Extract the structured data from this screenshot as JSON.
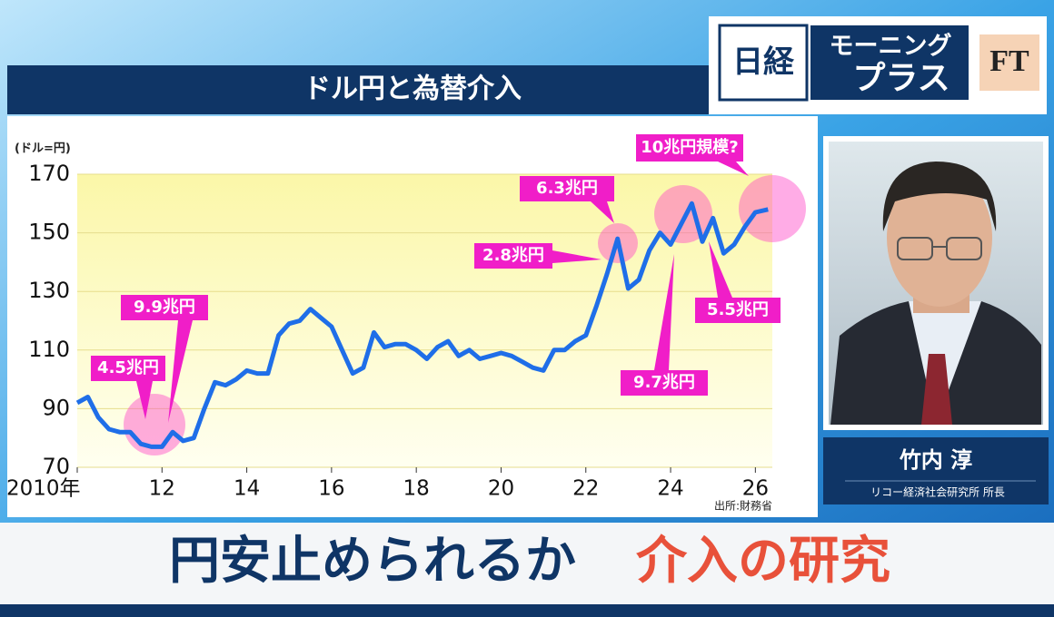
{
  "header": {
    "title": "ドル円と為替介入"
  },
  "logo": {
    "nikkei": "日経",
    "line1": "モーニング",
    "line2": "プラス",
    "ft": "FT"
  },
  "chart_data": {
    "type": "line",
    "unit_label": "(ドル=円)",
    "source": "出所:財務省",
    "color": "#1f6ee8",
    "x": [
      2010.0,
      2010.25,
      2010.5,
      2010.75,
      2011.0,
      2011.25,
      2011.5,
      2011.75,
      2012.0,
      2012.25,
      2012.5,
      2012.75,
      2013.0,
      2013.25,
      2013.5,
      2013.75,
      2014.0,
      2014.25,
      2014.5,
      2014.75,
      2015.0,
      2015.25,
      2015.5,
      2015.75,
      2016.0,
      2016.25,
      2016.5,
      2016.75,
      2017.0,
      2017.25,
      2017.5,
      2017.75,
      2018.0,
      2018.25,
      2018.5,
      2018.75,
      2019.0,
      2019.25,
      2019.5,
      2019.75,
      2020.0,
      2020.25,
      2020.5,
      2020.75,
      2021.0,
      2021.25,
      2021.5,
      2021.75,
      2022.0,
      2022.25,
      2022.5,
      2022.75,
      2023.0,
      2023.25,
      2023.5,
      2023.75,
      2024.0,
      2024.25,
      2024.5,
      2024.75,
      2025.0,
      2025.25,
      2025.5,
      2025.75,
      2026.0,
      2026.3
    ],
    "values": [
      92,
      94,
      87,
      83,
      82,
      82,
      78,
      77,
      77,
      82,
      79,
      80,
      90,
      99,
      98,
      100,
      103,
      102,
      102,
      115,
      119,
      120,
      124,
      121,
      118,
      110,
      102,
      104,
      116,
      111,
      112,
      112,
      110,
      107,
      111,
      113,
      108,
      110,
      107,
      108,
      109,
      108,
      106,
      104,
      103,
      110,
      110,
      113,
      115,
      125,
      136,
      148,
      131,
      134,
      144,
      150,
      146,
      153,
      160,
      147,
      155,
      143,
      146,
      152,
      157,
      158
    ],
    "xlim": [
      2010,
      2026.4
    ],
    "ylim": [
      70,
      170
    ],
    "yticks": [
      70,
      90,
      110,
      130,
      150,
      170
    ],
    "xticks": [
      {
        "value": 2010,
        "label": "2010年"
      },
      {
        "value": 2012,
        "label": "12"
      },
      {
        "value": 2014,
        "label": "14"
      },
      {
        "value": 2016,
        "label": "16"
      },
      {
        "value": 2018,
        "label": "18"
      },
      {
        "value": 2020,
        "label": "20"
      },
      {
        "value": 2022,
        "label": "22"
      },
      {
        "value": 2024,
        "label": "24"
      },
      {
        "value": 2026,
        "label": "26"
      }
    ],
    "annotations": [
      "4.5兆円",
      "9.9兆円",
      "2.8兆円",
      "6.3兆円",
      "9.7兆円",
      "5.5兆円",
      "10兆円規模?"
    ]
  },
  "guest": {
    "name": "竹内 淳",
    "affiliation": "リコー経済社会研究所 所長"
  },
  "caption": {
    "main": "円安止められるか",
    "highlight": "介入の研究"
  }
}
